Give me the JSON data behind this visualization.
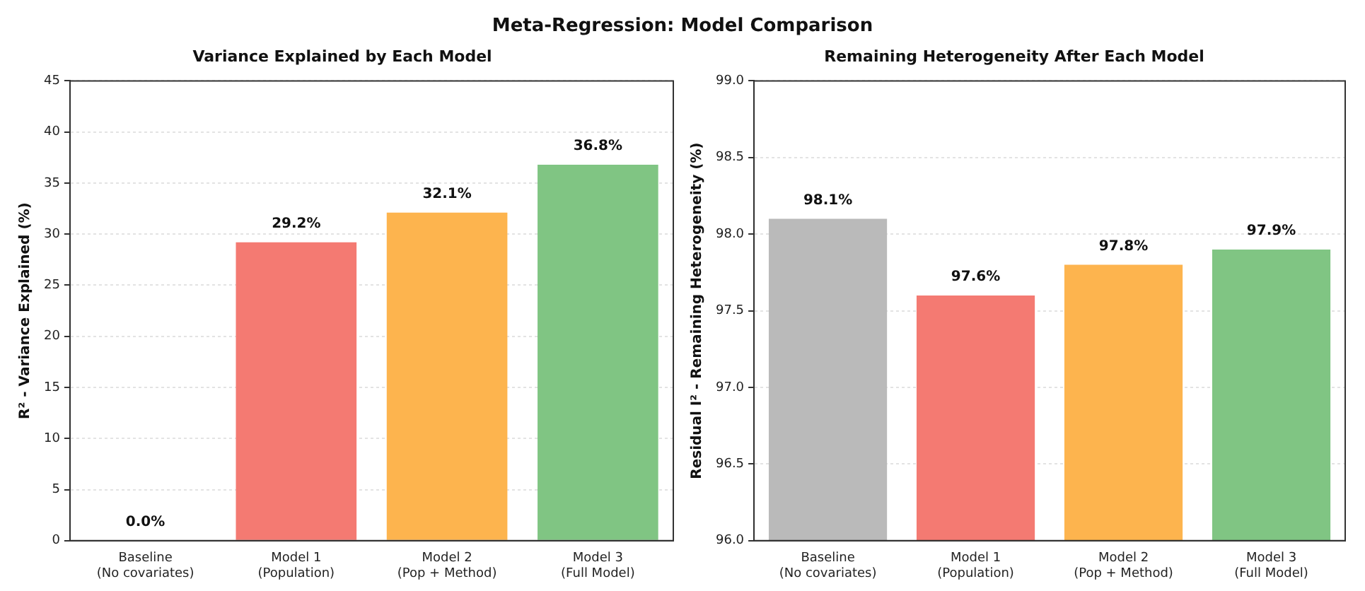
{
  "chart_data": [
    {
      "type": "bar",
      "title": "Variance Explained by Each Model",
      "ylabel": "R² - Variance Explained (%)",
      "annotations": [
        "Meta-Regression: Model Comparison"
      ],
      "categories": [
        "Baseline\n(No covariates)",
        "Model 1\n(Population)",
        "Model 2\n(Pop + Method)",
        "Model 3\n(Full Model)"
      ],
      "values": [
        0.0,
        29.2,
        32.1,
        36.8
      ],
      "colors": [
        "#bababa",
        "#f47a72",
        "#fdb44e",
        "#80c583"
      ],
      "value_labels": [
        "0.0%",
        "29.2%",
        "32.1%",
        "36.8%"
      ],
      "ylim": [
        0,
        45
      ],
      "yticks": [
        0,
        5,
        10,
        15,
        20,
        25,
        30,
        35,
        40,
        45
      ],
      "grid": "y"
    },
    {
      "type": "bar",
      "title": "Remaining Heterogeneity After Each Model",
      "ylabel": "Residual I² - Remaining Heterogeneity (%)",
      "categories": [
        "Baseline\n(No covariates)",
        "Model 1\n(Population)",
        "Model 2\n(Pop + Method)",
        "Model 3\n(Full Model)"
      ],
      "values": [
        98.1,
        97.6,
        97.8,
        97.9
      ],
      "colors": [
        "#bababa",
        "#f47a72",
        "#fdb44e",
        "#80c583"
      ],
      "value_labels": [
        "98.1%",
        "97.6%",
        "97.8%",
        "97.9%"
      ],
      "ylim": [
        96,
        99
      ],
      "yticks": [
        {
          "value": 96,
          "label": "96.0"
        },
        {
          "value": 96.5,
          "label": "96.5"
        },
        {
          "value": 97,
          "label": "97.0"
        },
        {
          "value": 97.5,
          "label": "97.5"
        },
        {
          "value": 98,
          "label": "98.0"
        },
        {
          "value": 98.5,
          "label": "98.5"
        },
        {
          "value": 99,
          "label": "99.0"
        }
      ],
      "grid": "y"
    }
  ]
}
